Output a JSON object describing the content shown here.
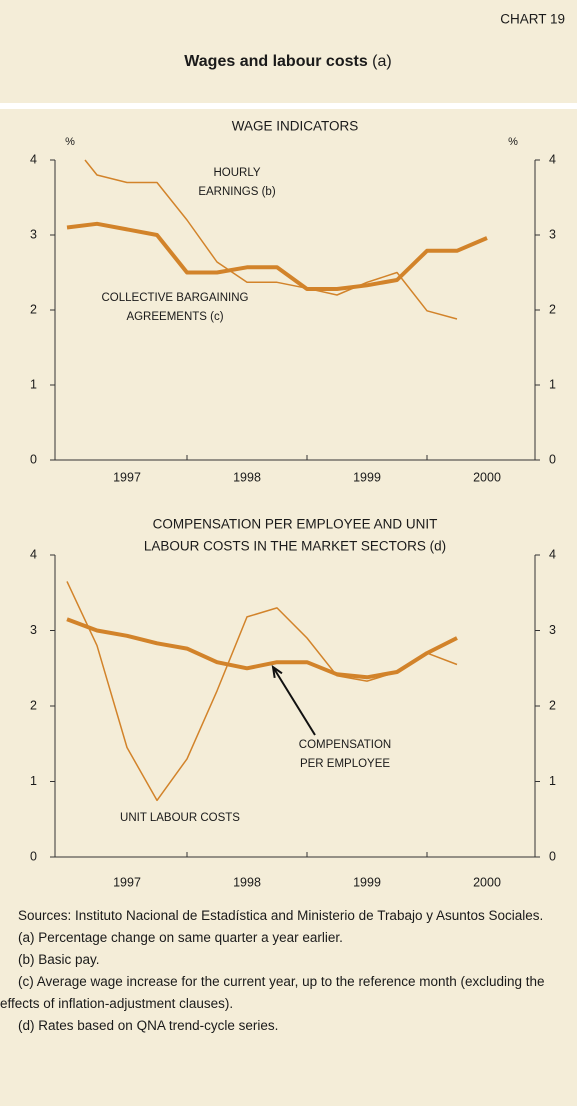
{
  "header": {
    "label": "CHART 19",
    "title": "Wages and labour costs",
    "title_note": "(a)"
  },
  "chart_data": [
    {
      "type": "line",
      "title": "WAGE INDICATORS",
      "ylabel": "%",
      "y2label": "%",
      "xlim": [
        1996.9,
        2000.9
      ],
      "xticks": [
        {
          "value": 1997.5,
          "label": "1997"
        },
        {
          "value": 1998.5,
          "label": "1998"
        },
        {
          "value": 1999.5,
          "label": "1999"
        },
        {
          "value": 2000.5,
          "label": "2000"
        }
      ],
      "xminorticks": [
        1998,
        1999,
        2000
      ],
      "ylim": [
        0,
        4
      ],
      "yticks": [
        0,
        1,
        2,
        3,
        4
      ],
      "y2lim": [
        0,
        4
      ],
      "y2ticks": [
        0,
        1,
        2,
        3,
        4
      ],
      "grid": false,
      "series": [
        {
          "color": "#d2832a",
          "line_width": 4,
          "x": [
            1997,
            1997.25,
            1997.75,
            1998,
            1998.25,
            1998.5,
            1998.75,
            1999,
            1999.25,
            1999.5,
            1999.75,
            2000,
            2000.25,
            2000.5
          ],
          "values": [
            3.1,
            3.15,
            3.0,
            2.5,
            2.5,
            2.57,
            2.57,
            2.28,
            2.28,
            2.33,
            2.4,
            2.79,
            2.79,
            2.96
          ]
        },
        {
          "color": "#d2832a",
          "line_width": 1.5,
          "x": [
            1997.15,
            1997.25,
            1997.5,
            1997.75,
            1998,
            1998.25,
            1998.5,
            1998.75,
            1999,
            1999.25,
            1999.5,
            1999.75,
            2000,
            2000.25
          ],
          "values": [
            4.0,
            3.8,
            3.7,
            3.7,
            3.2,
            2.64,
            2.37,
            2.37,
            2.29,
            2.2,
            2.37,
            2.5,
            1.99,
            1.88
          ]
        }
      ],
      "annotations": [
        {
          "text": [
            "HOURLY",
            "EARNINGS (b)"
          ]
        },
        {
          "text": [
            "COLLECTIVE BARGAINING",
            "AGREEMENTS (c)"
          ]
        }
      ]
    },
    {
      "type": "line",
      "title": [
        "COMPENSATION PER EMPLOYEE AND UNIT",
        "LABOUR COSTS IN THE MARKET SECTORS (d)"
      ],
      "xlim": [
        1996.9,
        2000.9
      ],
      "xticks": [
        {
          "value": 1997.5,
          "label": "1997"
        },
        {
          "value": 1998.5,
          "label": "1998"
        },
        {
          "value": 1999.5,
          "label": "1999"
        },
        {
          "value": 2000.5,
          "label": "2000"
        }
      ],
      "xminorticks": [
        1998,
        1999,
        2000
      ],
      "ylim": [
        0,
        4
      ],
      "yticks": [
        0,
        1,
        2,
        3,
        4
      ],
      "y2lim": [
        0,
        4
      ],
      "y2ticks": [
        0,
        1,
        2,
        3,
        4
      ],
      "grid": false,
      "series": [
        {
          "color": "#d2832a",
          "line_width": 4,
          "x": [
            1997,
            1997.25,
            1997.5,
            1997.75,
            1998,
            1998.25,
            1998.5,
            1998.75,
            1999,
            1999.25,
            1999.5,
            1999.75,
            2000,
            2000.25
          ],
          "values": [
            3.15,
            3.0,
            2.93,
            2.83,
            2.76,
            2.58,
            2.5,
            2.58,
            2.58,
            2.42,
            2.38,
            2.45,
            2.7,
            2.9
          ]
        },
        {
          "color": "#d2832a",
          "line_width": 1.5,
          "x": [
            1997,
            1997.25,
            1997.5,
            1997.75,
            1998,
            1998.25,
            1998.5,
            1998.75,
            1999,
            1999.25,
            1999.5,
            1999.75,
            2000,
            2000.25
          ],
          "values": [
            3.65,
            2.8,
            1.45,
            0.75,
            1.3,
            2.2,
            3.18,
            3.3,
            2.9,
            2.4,
            2.33,
            2.45,
            2.7,
            2.55
          ]
        }
      ],
      "annotations": [
        {
          "text": [
            "COMPENSATION",
            "PER EMPLOYEE"
          ]
        },
        {
          "text": [
            "UNIT LABOUR COSTS"
          ]
        }
      ]
    }
  ],
  "footnotes": {
    "sources": "Sources: Instituto Nacional de Estadística and Ministerio de Trabajo y Asuntos Sociales.",
    "notes": [
      "(a)  Percentage change on same quarter a year earlier.",
      "(b)  Basic pay.",
      "(c)  Average wage increase for the current year, up to the reference month  (excluding the effects of inflation-adjustment clauses).",
      "(d)  Rates based on QNA trend-cycle series."
    ]
  }
}
